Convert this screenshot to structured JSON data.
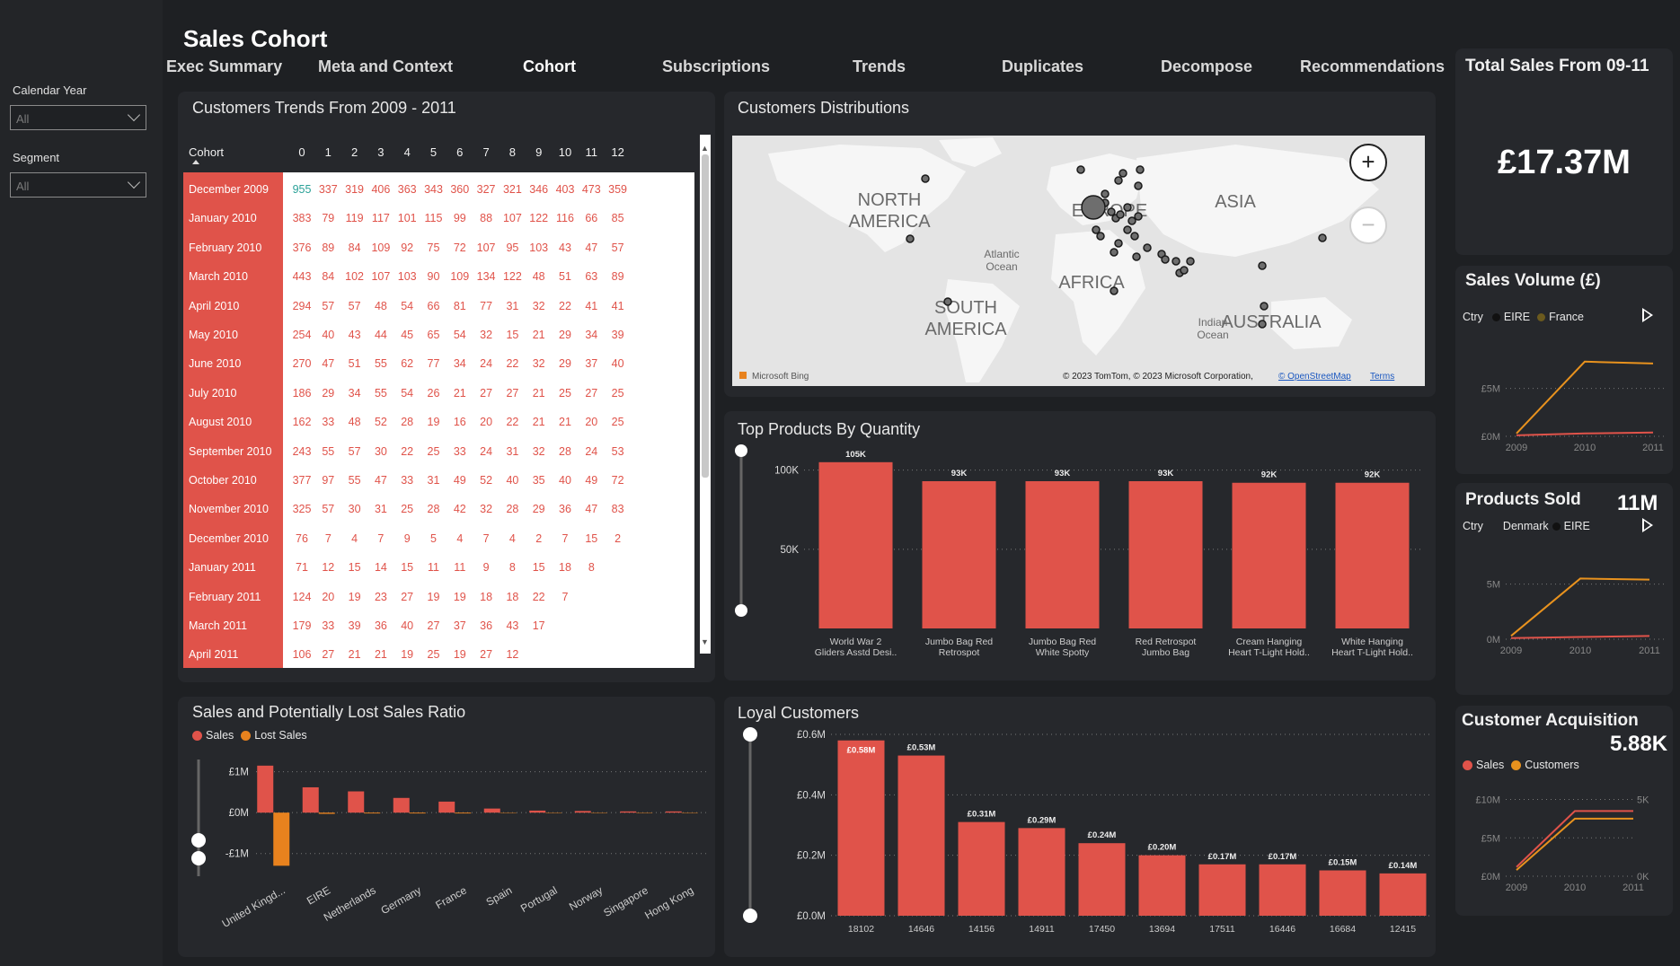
{
  "filters": {
    "calendar_year": {
      "label": "Calendar Year",
      "value": "All"
    },
    "segment": {
      "label": "Segment",
      "value": "All"
    }
  },
  "header": {
    "title": "Sales Cohort"
  },
  "nav": [
    "Exec Summary",
    "Meta and Context",
    "Cohort",
    "Subscriptions",
    "Trends",
    "Duplicates",
    "Decompose",
    "Recommendations"
  ],
  "cohort_panel": {
    "title": "Customers Trends From 2009 - 2011",
    "column_header": "Cohort",
    "periods": [
      "0",
      "1",
      "2",
      "3",
      "4",
      "5",
      "6",
      "7",
      "8",
      "9",
      "10",
      "11",
      "12"
    ],
    "rows": [
      {
        "label": "December 2009",
        "values": [
          "955",
          "337",
          "319",
          "406",
          "363",
          "343",
          "360",
          "327",
          "321",
          "346",
          "403",
          "473",
          "359"
        ]
      },
      {
        "label": "January 2010",
        "values": [
          "383",
          "79",
          "119",
          "117",
          "101",
          "115",
          "99",
          "88",
          "107",
          "122",
          "116",
          "66",
          "85"
        ]
      },
      {
        "label": "February 2010",
        "values": [
          "376",
          "89",
          "84",
          "109",
          "92",
          "75",
          "72",
          "107",
          "95",
          "103",
          "43",
          "47",
          "57"
        ]
      },
      {
        "label": "March 2010",
        "values": [
          "443",
          "84",
          "102",
          "107",
          "103",
          "90",
          "109",
          "134",
          "122",
          "48",
          "51",
          "63",
          "89"
        ]
      },
      {
        "label": "April 2010",
        "values": [
          "294",
          "57",
          "57",
          "48",
          "54",
          "66",
          "81",
          "77",
          "31",
          "32",
          "22",
          "41",
          "41"
        ]
      },
      {
        "label": "May 2010",
        "values": [
          "254",
          "40",
          "43",
          "44",
          "45",
          "65",
          "54",
          "32",
          "15",
          "21",
          "29",
          "34",
          "39"
        ]
      },
      {
        "label": "June 2010",
        "values": [
          "270",
          "47",
          "51",
          "55",
          "62",
          "77",
          "34",
          "24",
          "22",
          "32",
          "29",
          "37",
          "40"
        ]
      },
      {
        "label": "July 2010",
        "values": [
          "186",
          "29",
          "34",
          "55",
          "54",
          "26",
          "21",
          "27",
          "27",
          "21",
          "25",
          "27",
          "25"
        ]
      },
      {
        "label": "August 2010",
        "values": [
          "162",
          "33",
          "48",
          "52",
          "28",
          "19",
          "16",
          "20",
          "22",
          "21",
          "21",
          "20",
          "25"
        ]
      },
      {
        "label": "September 2010",
        "values": [
          "243",
          "55",
          "57",
          "30",
          "22",
          "25",
          "33",
          "24",
          "31",
          "32",
          "28",
          "24",
          "53"
        ]
      },
      {
        "label": "October 2010",
        "values": [
          "377",
          "97",
          "55",
          "47",
          "33",
          "31",
          "49",
          "52",
          "40",
          "35",
          "40",
          "49",
          "72"
        ]
      },
      {
        "label": "November 2010",
        "values": [
          "325",
          "57",
          "30",
          "31",
          "25",
          "28",
          "42",
          "32",
          "28",
          "29",
          "36",
          "47",
          "83"
        ]
      },
      {
        "label": "December 2010",
        "values": [
          "76",
          "7",
          "4",
          "7",
          "9",
          "5",
          "4",
          "7",
          "4",
          "2",
          "7",
          "15",
          "2"
        ]
      },
      {
        "label": "January 2011",
        "values": [
          "71",
          "12",
          "15",
          "14",
          "15",
          "11",
          "11",
          "9",
          "8",
          "15",
          "18",
          "8",
          ""
        ]
      },
      {
        "label": "February 2011",
        "values": [
          "124",
          "20",
          "19",
          "23",
          "27",
          "19",
          "19",
          "18",
          "18",
          "22",
          "7",
          "",
          ""
        ]
      },
      {
        "label": "March 2011",
        "values": [
          "179",
          "33",
          "39",
          "36",
          "40",
          "27",
          "37",
          "36",
          "43",
          "17",
          "",
          "",
          ""
        ]
      },
      {
        "label": "April 2011",
        "values": [
          "106",
          "27",
          "21",
          "21",
          "19",
          "25",
          "19",
          "27",
          "12",
          "",
          "",
          "",
          ""
        ]
      }
    ]
  },
  "map_panel": {
    "title": "Customers Distributions",
    "labels": [
      "NORTH AMERICA",
      "EUROPE",
      "ASIA",
      "AFRICA",
      "SOUTH AMERICA",
      "AUSTRALIA",
      "Atlantic Ocean",
      "Indian Ocean"
    ],
    "attribution": "© 2023 TomTom, © 2023 Microsoft Corporation,",
    "osm": "© OpenStreetMap",
    "terms": "Terms",
    "bing": "Microsoft Bing"
  },
  "products_chart": {
    "title": "Top Products By Quantity",
    "chart_data": {
      "type": "bar",
      "categories": [
        [
          "World War 2",
          "Gliders Asstd Desi.."
        ],
        [
          "Jumbo Bag Red",
          "Retrospot"
        ],
        [
          "Jumbo Bag Red",
          "White Spotty"
        ],
        [
          "Red Retrospot",
          "Jumbo Bag"
        ],
        [
          "Cream Hanging",
          "Heart T-Light Hold.."
        ],
        [
          "White Hanging",
          "Heart T-Light Hold.."
        ]
      ],
      "values": [
        105,
        93,
        93,
        93,
        92,
        92
      ],
      "data_labels": [
        "105K",
        "93K",
        "93K",
        "93K",
        "92K",
        "92K"
      ],
      "ylim": [
        0,
        110
      ],
      "yticks": [
        {
          "v": 50,
          "label": "50K"
        },
        {
          "v": 100,
          "label": "100K"
        }
      ]
    }
  },
  "lost_sales_chart": {
    "title": "Sales and Potentially Lost Sales Ratio",
    "legend": [
      {
        "name": "Sales",
        "color": "#e0534a"
      },
      {
        "name": "Lost Sales",
        "color": "#e8821e"
      }
    ],
    "chart_data": {
      "type": "bar",
      "categories": [
        "United Kingd...",
        "EIRE",
        "Netherlands",
        "Germany",
        "France",
        "Spain",
        "Portugal",
        "Norway",
        "Singapore",
        "Hong Kong"
      ],
      "series": [
        {
          "name": "Sales",
          "values": [
            1.15,
            0.62,
            0.52,
            0.36,
            0.27,
            0.1,
            0.05,
            0.04,
            0.03,
            0.03
          ]
        },
        {
          "name": "Lost Sales",
          "values": [
            -1.3,
            -0.03,
            -0.02,
            -0.02,
            -0.02,
            -0.01,
            -0.01,
            -0.01,
            -0.01,
            -0.01
          ]
        }
      ],
      "ylim": [
        -1.6,
        1.3
      ],
      "yticks": [
        {
          "v": 1,
          "label": "£1M"
        },
        {
          "v": 0,
          "label": "£0M"
        },
        {
          "v": -1,
          "label": "-£1M"
        }
      ]
    }
  },
  "loyal_chart": {
    "title": "Loyal Customers",
    "chart_data": {
      "type": "bar",
      "categories": [
        "18102",
        "14646",
        "14156",
        "14911",
        "17450",
        "13694",
        "17511",
        "16446",
        "16684",
        "12415"
      ],
      "values": [
        0.58,
        0.53,
        0.31,
        0.29,
        0.24,
        0.2,
        0.17,
        0.17,
        0.15,
        0.14
      ],
      "data_labels": [
        "£0.58M",
        "£0.53M",
        "£0.31M",
        "£0.29M",
        "£0.24M",
        "£0.20M",
        "£0.17M",
        "£0.17M",
        "£0.15M",
        "£0.14M"
      ],
      "ylim": [
        0,
        0.6
      ],
      "yticks": [
        {
          "v": 0,
          "label": "£0.0M"
        },
        {
          "v": 0.2,
          "label": "£0.2M"
        },
        {
          "v": 0.4,
          "label": "£0.4M"
        },
        {
          "v": 0.6,
          "label": "£0.6M"
        }
      ]
    }
  },
  "kpi_total": {
    "title": "Total Sales From 09-11",
    "value": "£17.37M"
  },
  "sales_volume": {
    "title": "Sales Volume (£)",
    "legend_prefix": "Ctry",
    "legend": [
      {
        "name": "EIRE",
        "color": "#111111"
      },
      {
        "name": "France",
        "color": "#6b5a1e"
      }
    ],
    "chart_data": {
      "type": "line",
      "x": [
        "2009",
        "2010",
        "2011"
      ],
      "series": [
        {
          "name": "Orange",
          "color": "#e8921e",
          "values": [
            0.3,
            7.8,
            7.6
          ]
        },
        {
          "name": "Red",
          "color": "#e0534a",
          "values": [
            0.1,
            0.3,
            0.4
          ]
        }
      ],
      "ylim": [
        0,
        9
      ],
      "yticks": [
        {
          "v": 0,
          "label": "£0M"
        },
        {
          "v": 5,
          "label": "£5M"
        }
      ]
    }
  },
  "products_sold": {
    "title": "Products Sold",
    "value": "11M",
    "legend_prefix": "Ctry",
    "legend": [
      {
        "name": "Denmark",
        "color": "#26282c"
      },
      {
        "name": "EIRE",
        "color": "#111111"
      }
    ],
    "chart_data": {
      "type": "line",
      "x": [
        "2009",
        "2010",
        "2011"
      ],
      "series": [
        {
          "name": "Orange",
          "color": "#e8921e",
          "values": [
            0.3,
            5.5,
            5.4
          ]
        },
        {
          "name": "Red",
          "color": "#e0534a",
          "values": [
            0.1,
            0.2,
            0.3
          ]
        }
      ],
      "ylim": [
        0,
        7
      ],
      "yticks": [
        {
          "v": 0,
          "label": "0M"
        },
        {
          "v": 5,
          "label": "5M"
        }
      ]
    }
  },
  "acquisition": {
    "title": "Customer Acquisition",
    "value": "5.88K",
    "legend": [
      {
        "name": "Sales",
        "color": "#e0534a"
      },
      {
        "name": "Customers",
        "color": "#e8921e"
      }
    ],
    "chart_data": {
      "type": "line",
      "x": [
        "2009",
        "2010",
        "2011"
      ],
      "series": [
        {
          "name": "Sales",
          "color": "#e0534a",
          "values": [
            1.2,
            8.5,
            8.5
          ]
        },
        {
          "name": "Customers",
          "color": "#e8921e",
          "values": [
            0.8,
            7.5,
            7.5
          ]
        }
      ],
      "ylim": [
        0,
        11
      ],
      "yticks_left": [
        {
          "v": 0,
          "label": "£0M"
        },
        {
          "v": 5,
          "label": "£5M"
        },
        {
          "v": 10,
          "label": "£10M"
        }
      ],
      "yticks_right": [
        {
          "v": 0,
          "label": "0K"
        },
        {
          "v": 5,
          "label": "5K"
        }
      ]
    }
  }
}
